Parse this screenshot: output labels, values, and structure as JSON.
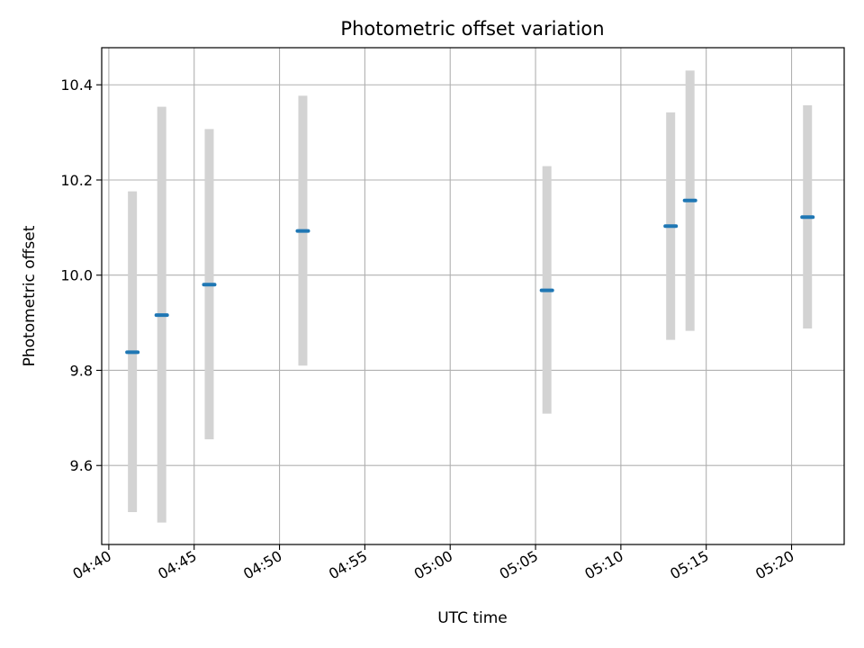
{
  "chart_data": {
    "type": "scatter",
    "title": "Photometric offset variation",
    "xlabel": "UTC time",
    "ylabel": "Photometric offset",
    "xlim": [
      "04:39:35",
      "05:23:05"
    ],
    "ylim": [
      9.434,
      10.478
    ],
    "grid": true,
    "x_ticks": [
      "04:40",
      "04:45",
      "04:50",
      "04:55",
      "05:00",
      "05:05",
      "05:10",
      "05:15",
      "05:20"
    ],
    "y_ticks": [
      "9.6",
      "9.8",
      "10.0",
      "10.2",
      "10.4"
    ],
    "series": [
      {
        "points": [
          {
            "x": "04:41:23",
            "y": 9.838,
            "yerr_low": 9.502,
            "yerr_high": 10.176
          },
          {
            "x": "04:43:06",
            "y": 9.916,
            "yerr_low": 9.48,
            "yerr_high": 10.354
          },
          {
            "x": "04:45:53",
            "y": 9.98,
            "yerr_low": 9.655,
            "yerr_high": 10.307
          },
          {
            "x": "04:51:22",
            "y": 10.093,
            "yerr_low": 9.81,
            "yerr_high": 10.377
          },
          {
            "x": "05:05:40",
            "y": 9.968,
            "yerr_low": 9.709,
            "yerr_high": 10.229
          },
          {
            "x": "05:12:55",
            "y": 10.103,
            "yerr_low": 9.864,
            "yerr_high": 10.342
          },
          {
            "x": "05:14:03",
            "y": 10.157,
            "yerr_low": 9.883,
            "yerr_high": 10.43
          },
          {
            "x": "05:20:56",
            "y": 10.122,
            "yerr_low": 9.888,
            "yerr_high": 10.357
          }
        ]
      }
    ],
    "colors": {
      "marker": "#1f77b4",
      "error_bar": "#d3d3d3",
      "grid": "#b0b0b0"
    }
  }
}
